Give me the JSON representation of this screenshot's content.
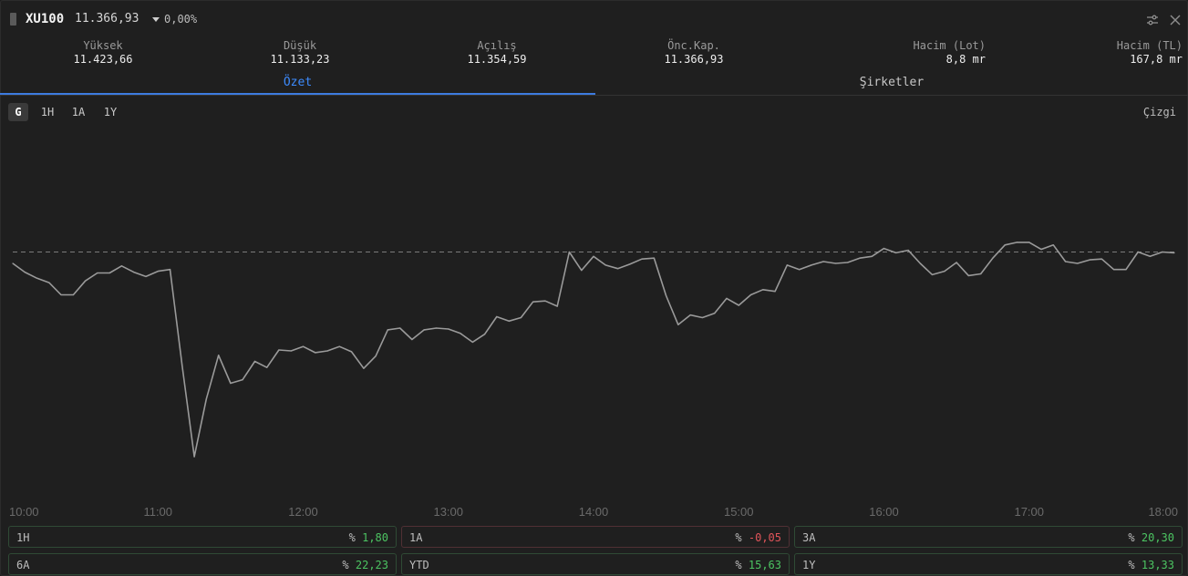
{
  "header": {
    "symbol": "XU100",
    "last_price": "11.366,93",
    "change": "0,00%",
    "icons": [
      "drag-handle-icon",
      "settings-sliders-icon",
      "close-icon"
    ]
  },
  "stats": [
    {
      "label": "Yüksek",
      "value": "11.423,66"
    },
    {
      "label": "Düşük",
      "value": "11.133,23"
    },
    {
      "label": "Açılış",
      "value": "11.354,59"
    },
    {
      "label": "Önc.Kap.",
      "value": "11.366,93"
    },
    {
      "label": "Hacim (Lot)",
      "value": "8,8 mr"
    },
    {
      "label": "Hacim (TL)",
      "value": "167,8 mr"
    }
  ],
  "tabs": [
    {
      "label": "Özet",
      "active": true
    },
    {
      "label": "Şirketler",
      "active": false
    }
  ],
  "ranges": [
    {
      "label": "G",
      "active": true
    },
    {
      "label": "1H",
      "active": false
    },
    {
      "label": "1A",
      "active": false
    },
    {
      "label": "1Y",
      "active": false
    }
  ],
  "chart_type_label": "Çizgi",
  "colors": {
    "accent": "#3d8bfd",
    "line": "#9a9a9a",
    "positive": "#4cc462",
    "negative": "#e0545a"
  },
  "chart_data": {
    "type": "line",
    "x_ticks": [
      "10:00",
      "11:00",
      "12:00",
      "13:00",
      "14:00",
      "15:00",
      "16:00",
      "17:00",
      "18:00"
    ],
    "reference_value": 11366.93,
    "ylim": [
      11130,
      11430
    ],
    "grid": false,
    "series": [
      {
        "x_hours": [
          10.0,
          10.083,
          10.167,
          10.25,
          10.333,
          10.417,
          10.5,
          10.583,
          10.667,
          10.75,
          10.833,
          10.917,
          11.0,
          11.083,
          11.167,
          11.25,
          11.333,
          11.417,
          11.5,
          11.583,
          11.667,
          11.75,
          11.833,
          11.917,
          12.0,
          12.083,
          12.167,
          12.25,
          12.333,
          12.417,
          12.5,
          12.583,
          12.667,
          12.75,
          12.833,
          12.917,
          13.0,
          13.083,
          13.167,
          13.25,
          13.333,
          13.417,
          13.5,
          13.583,
          13.667,
          13.75,
          13.833,
          13.917,
          14.0,
          14.083,
          14.167,
          14.25,
          14.333,
          14.417,
          14.5,
          14.583,
          14.667,
          14.75,
          14.833,
          14.917,
          15.0,
          15.083,
          15.167,
          15.25,
          15.333,
          15.417,
          15.5,
          15.583,
          15.667,
          15.75,
          15.833,
          15.917,
          16.0,
          16.083,
          16.167,
          16.25,
          16.333,
          16.417,
          16.5,
          16.583,
          16.667,
          16.75,
          16.833,
          16.917,
          17.0,
          17.083,
          17.167,
          17.25,
          17.333,
          17.417,
          17.5,
          17.583,
          17.667,
          17.75,
          17.833,
          17.917,
          18.0
        ],
        "values": [
          11354,
          11344,
          11337,
          11332,
          11318,
          11318,
          11334,
          11343,
          11343,
          11351,
          11344,
          11339,
          11345,
          11347,
          11237,
          11133,
          11199,
          11249,
          11217,
          11221,
          11242,
          11235,
          11255,
          11254,
          11259,
          11252,
          11254,
          11259,
          11253,
          11234,
          11248,
          11278,
          11280,
          11267,
          11278,
          11280,
          11279,
          11274,
          11264,
          11273,
          11293,
          11288,
          11292,
          11310,
          11311,
          11305,
          11367,
          11346,
          11362,
          11352,
          11348,
          11353,
          11359,
          11360,
          11317,
          11284,
          11295,
          11292,
          11297,
          11314,
          11306,
          11318,
          11324,
          11322,
          11352,
          11347,
          11352,
          11356,
          11354,
          11355,
          11360,
          11362,
          11371,
          11366,
          11369,
          11354,
          11341,
          11345,
          11355,
          11340,
          11342,
          11360,
          11375,
          11378,
          11378,
          11370,
          11375,
          11356,
          11354,
          11358,
          11359,
          11347,
          11347,
          11367,
          11362,
          11367,
          11366
        ]
      }
    ]
  },
  "performance": [
    {
      "label": "1H",
      "prefix": "%",
      "value": "1,80",
      "sign": "positive"
    },
    {
      "label": "1A",
      "prefix": "%",
      "value": "-0,05",
      "sign": "negative"
    },
    {
      "label": "3A",
      "prefix": "%",
      "value": "20,30",
      "sign": "positive"
    },
    {
      "label": "6A",
      "prefix": "%",
      "value": "22,23",
      "sign": "positive"
    },
    {
      "label": "YTD",
      "prefix": "%",
      "value": "15,63",
      "sign": "positive"
    },
    {
      "label": "1Y",
      "prefix": "%",
      "value": "13,33",
      "sign": "positive"
    }
  ]
}
